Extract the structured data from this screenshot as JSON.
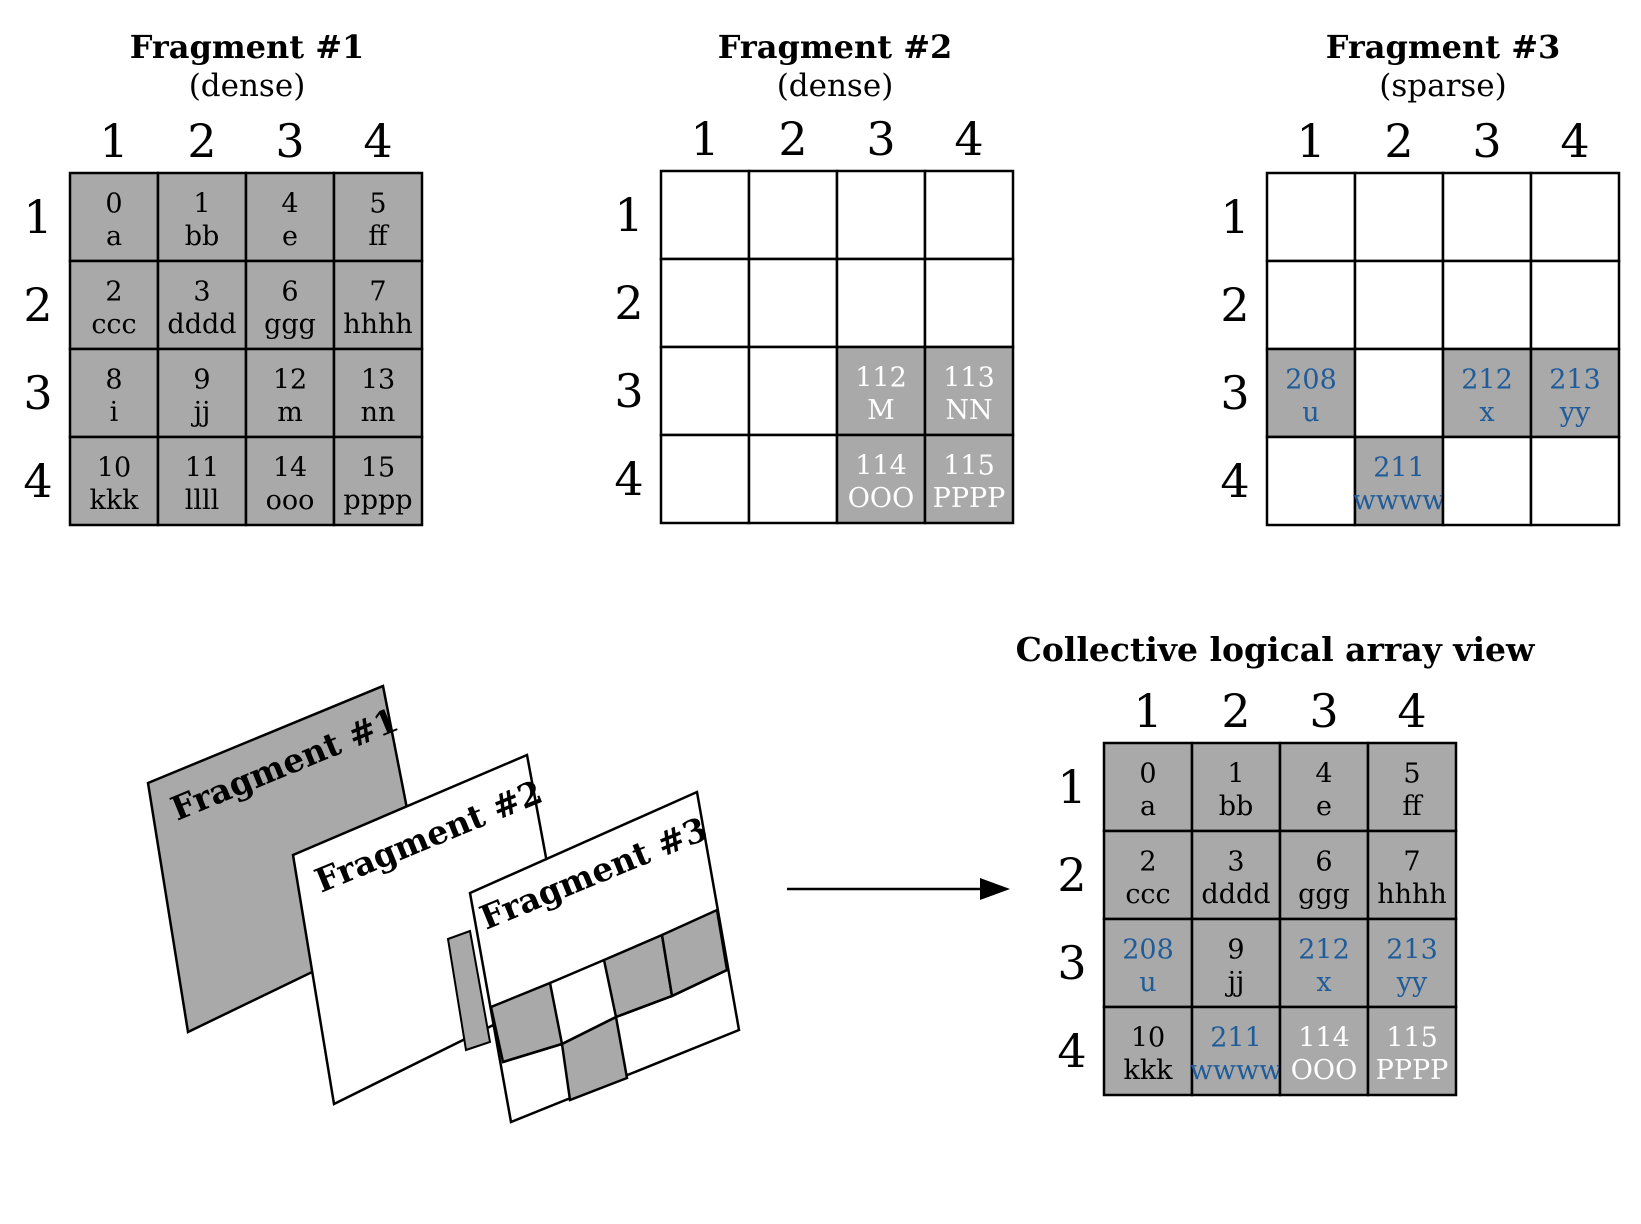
{
  "colors": {
    "filled": "#a9a9a9",
    "empty": "#ffffff",
    "border": "#000000",
    "text_dark": "#000000",
    "text_light": "#ffffff",
    "text_blue": "#1f5c99"
  },
  "axis_labels": [
    "1",
    "2",
    "3",
    "4"
  ],
  "fragments": [
    {
      "title": "Fragment #1",
      "subtitle": "(dense)",
      "cells": [
        {
          "row": 1,
          "col": 1,
          "value": "0",
          "attr": "a",
          "color": "dark"
        },
        {
          "row": 1,
          "col": 2,
          "value": "1",
          "attr": "bb",
          "color": "dark"
        },
        {
          "row": 1,
          "col": 3,
          "value": "4",
          "attr": "e",
          "color": "dark"
        },
        {
          "row": 1,
          "col": 4,
          "value": "5",
          "attr": "ff",
          "color": "dark"
        },
        {
          "row": 2,
          "col": 1,
          "value": "2",
          "attr": "ccc",
          "color": "dark"
        },
        {
          "row": 2,
          "col": 2,
          "value": "3",
          "attr": "dddd",
          "color": "dark"
        },
        {
          "row": 2,
          "col": 3,
          "value": "6",
          "attr": "ggg",
          "color": "dark"
        },
        {
          "row": 2,
          "col": 4,
          "value": "7",
          "attr": "hhhh",
          "color": "dark"
        },
        {
          "row": 3,
          "col": 1,
          "value": "8",
          "attr": "i",
          "color": "dark"
        },
        {
          "row": 3,
          "col": 2,
          "value": "9",
          "attr": "jj",
          "color": "dark"
        },
        {
          "row": 3,
          "col": 3,
          "value": "12",
          "attr": "m",
          "color": "dark"
        },
        {
          "row": 3,
          "col": 4,
          "value": "13",
          "attr": "nn",
          "color": "dark"
        },
        {
          "row": 4,
          "col": 1,
          "value": "10",
          "attr": "kkk",
          "color": "dark"
        },
        {
          "row": 4,
          "col": 2,
          "value": "11",
          "attr": "llll",
          "color": "dark"
        },
        {
          "row": 4,
          "col": 3,
          "value": "14",
          "attr": "ooo",
          "color": "dark"
        },
        {
          "row": 4,
          "col": 4,
          "value": "15",
          "attr": "pppp",
          "color": "dark"
        }
      ]
    },
    {
      "title": "Fragment #2",
      "subtitle": "(dense)",
      "cells": [
        {
          "row": 3,
          "col": 3,
          "value": "112",
          "attr": "M",
          "color": "light"
        },
        {
          "row": 3,
          "col": 4,
          "value": "113",
          "attr": "NN",
          "color": "light"
        },
        {
          "row": 4,
          "col": 3,
          "value": "114",
          "attr": "OOO",
          "color": "light"
        },
        {
          "row": 4,
          "col": 4,
          "value": "115",
          "attr": "PPPP",
          "color": "light"
        }
      ]
    },
    {
      "title": "Fragment #3",
      "subtitle": "(sparse)",
      "cells": [
        {
          "row": 3,
          "col": 1,
          "value": "208",
          "attr": "u",
          "color": "blue"
        },
        {
          "row": 3,
          "col": 3,
          "value": "212",
          "attr": "x",
          "color": "blue"
        },
        {
          "row": 3,
          "col": 4,
          "value": "213",
          "attr": "yy",
          "color": "blue"
        },
        {
          "row": 4,
          "col": 2,
          "value": "211",
          "attr": "wwww",
          "color": "blue"
        }
      ]
    }
  ],
  "stack": {
    "labels": [
      "Fragment #1",
      "Fragment #2",
      "Fragment #3"
    ]
  },
  "collective": {
    "title": "Collective logical array view",
    "cells": [
      {
        "row": 1,
        "col": 1,
        "value": "0",
        "attr": "a",
        "color": "dark"
      },
      {
        "row": 1,
        "col": 2,
        "value": "1",
        "attr": "bb",
        "color": "dark"
      },
      {
        "row": 1,
        "col": 3,
        "value": "4",
        "attr": "e",
        "color": "dark"
      },
      {
        "row": 1,
        "col": 4,
        "value": "5",
        "attr": "ff",
        "color": "dark"
      },
      {
        "row": 2,
        "col": 1,
        "value": "2",
        "attr": "ccc",
        "color": "dark"
      },
      {
        "row": 2,
        "col": 2,
        "value": "3",
        "attr": "dddd",
        "color": "dark"
      },
      {
        "row": 2,
        "col": 3,
        "value": "6",
        "attr": "ggg",
        "color": "dark"
      },
      {
        "row": 2,
        "col": 4,
        "value": "7",
        "attr": "hhhh",
        "color": "dark"
      },
      {
        "row": 3,
        "col": 1,
        "value": "208",
        "attr": "u",
        "color": "blue"
      },
      {
        "row": 3,
        "col": 2,
        "value": "9",
        "attr": "jj",
        "color": "dark"
      },
      {
        "row": 3,
        "col": 3,
        "value": "212",
        "attr": "x",
        "color": "blue"
      },
      {
        "row": 3,
        "col": 4,
        "value": "213",
        "attr": "yy",
        "color": "blue"
      },
      {
        "row": 4,
        "col": 1,
        "value": "10",
        "attr": "kkk",
        "color": "dark"
      },
      {
        "row": 4,
        "col": 2,
        "value": "211",
        "attr": "wwww",
        "color": "blue"
      },
      {
        "row": 4,
        "col": 3,
        "value": "114",
        "attr": "OOO",
        "color": "light"
      },
      {
        "row": 4,
        "col": 4,
        "value": "115",
        "attr": "PPPP",
        "color": "light"
      }
    ]
  }
}
